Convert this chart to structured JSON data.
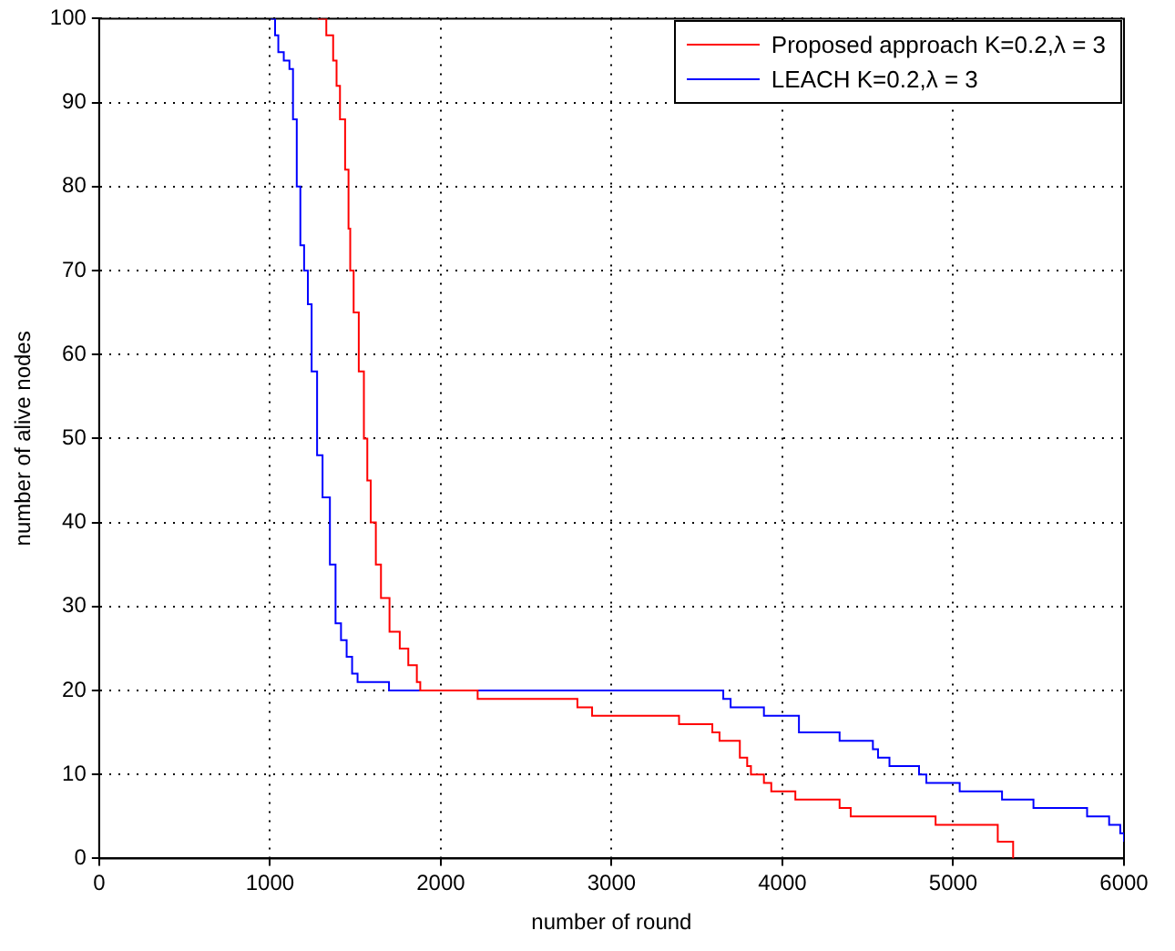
{
  "chart_data": {
    "type": "step",
    "xlabel": "number of round",
    "ylabel": "number of alive nodes",
    "xlim": [
      0,
      6000
    ],
    "ylim": [
      0,
      100
    ],
    "xticks": [
      0,
      1000,
      2000,
      3000,
      4000,
      5000,
      6000
    ],
    "yticks": [
      0,
      10,
      20,
      30,
      40,
      50,
      60,
      70,
      80,
      90,
      100
    ],
    "grid": true,
    "legend": "top right",
    "series": [
      {
        "name": "Proposed approach  K=0.2,λ = 3",
        "color": "#ff0000",
        "x": [
          1280,
          1330,
          1370,
          1390,
          1410,
          1440,
          1460,
          1470,
          1490,
          1520,
          1550,
          1570,
          1590,
          1620,
          1650,
          1700,
          1760,
          1810,
          1860,
          1880,
          2216,
          2800,
          2886,
          3395,
          3590,
          3632,
          3751,
          3794,
          3816,
          3892,
          3935,
          4076,
          4335,
          4400,
          4897,
          5261,
          5351
        ],
        "values": [
          100,
          98,
          95,
          92,
          88,
          82,
          75,
          70,
          65,
          58,
          50,
          45,
          40,
          35,
          31,
          27,
          25,
          23,
          21,
          20,
          19,
          18,
          17,
          16,
          15,
          14,
          12,
          11,
          10,
          9,
          8,
          7,
          6,
          5,
          4,
          2,
          0
        ]
      },
      {
        "name": "LEACH K=0.2,λ = 3",
        "color": "#0000ff",
        "x": [
          1005,
          1030,
          1049,
          1081,
          1114,
          1135,
          1157,
          1178,
          1200,
          1222,
          1244,
          1276,
          1290,
          1308,
          1351,
          1384,
          1416,
          1449,
          1481,
          1513,
          1697,
          3654,
          3697,
          3892,
          4097,
          4335,
          4530,
          4560,
          4627,
          4800,
          4843,
          5038,
          5286,
          5470,
          5784,
          5913,
          5978,
          6000
        ],
        "values": [
          100,
          98,
          96,
          95,
          94,
          88,
          80,
          73,
          70,
          66,
          58,
          48,
          48,
          43,
          35,
          28,
          26,
          24,
          22,
          21,
          20,
          19,
          18,
          17,
          15,
          14,
          13,
          12,
          11,
          10,
          9,
          8,
          7,
          6,
          5,
          4,
          3,
          2
        ]
      }
    ]
  }
}
